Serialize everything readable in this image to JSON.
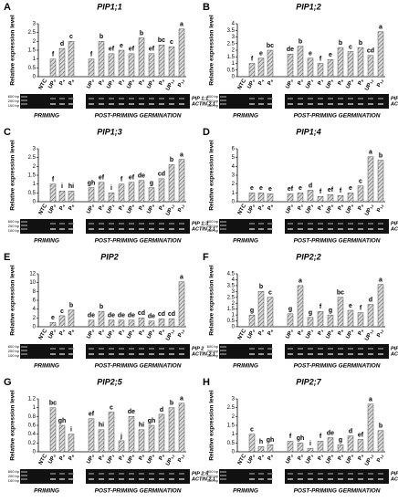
{
  "chart_data": [
    {
      "type": "bar",
      "panel": "A",
      "title": "PIP1;1",
      "ylabel": "Relative expression level",
      "categories": [
        "NTC",
        "UP₀",
        "P₄",
        "P₈",
        "UP₀",
        "P₀",
        "UP₃",
        "P₃",
        "UP₆",
        "P₆",
        "UP₉",
        "P₉",
        "UP₁₂",
        "P₁₂"
      ],
      "values": [
        0,
        1.0,
        1.6,
        2.0,
        1.0,
        2.0,
        1.3,
        1.5,
        1.3,
        2.2,
        1.3,
        1.8,
        1.7,
        2.7
      ],
      "annotations": [
        null,
        "f",
        "d",
        "c",
        "f",
        "b",
        "ef",
        "e",
        "ef",
        "b",
        "ef",
        "bc",
        "c",
        "a"
      ],
      "ylim": [
        0,
        3
      ],
      "yticks": [
        0,
        0.5,
        1,
        1.5,
        2,
        2.5,
        3
      ],
      "groups": [
        "PRIMING",
        "POST-PRIMING GERMINATION"
      ],
      "gel_labels": [
        "PIP 1;1",
        "ACTIN 2.1"
      ],
      "ladder": [
        "600 bp",
        "200 bp",
        "100 bp"
      ]
    },
    {
      "type": "bar",
      "panel": "B",
      "title": "PIP1;2",
      "ylabel": "Relative expression level",
      "categories": [
        "NTC",
        "UP₀",
        "P₄",
        "P₈",
        "UP₀",
        "P₀",
        "UP₃",
        "P₃",
        "UP₆",
        "P₆",
        "UP₉",
        "P₉",
        "UP₁₂",
        "P₁₂"
      ],
      "values": [
        0,
        1.0,
        1.4,
        2.0,
        1.7,
        2.3,
        1.4,
        1.0,
        1.3,
        2.2,
        1.9,
        2.2,
        1.6,
        3.4
      ],
      "annotations": [
        null,
        "f",
        "e",
        "bc",
        "de",
        "b",
        "e",
        "f",
        "e",
        "b",
        "c",
        "b",
        "cd",
        "a"
      ],
      "ylim": [
        0,
        4
      ],
      "yticks": [
        0,
        0.5,
        1,
        1.5,
        2,
        2.5,
        3,
        3.5,
        4
      ],
      "groups": [
        "PRIMING",
        "POST-PRIMING GERMINATION"
      ],
      "gel_labels": [
        "PIP 1;2",
        "ACTIN 2.1"
      ],
      "ladder": [
        "600 bp",
        "200 bp",
        "100 bp"
      ]
    },
    {
      "type": "bar",
      "panel": "C",
      "title": "PIP1;3",
      "ylabel": "Relative expression level",
      "categories": [
        "NTC",
        "UP₀",
        "P₄",
        "P₈",
        "UP₀",
        "P₀",
        "UP₃",
        "P₃",
        "UP₆",
        "P₆",
        "UP₉",
        "P₉",
        "UP₁₂",
        "P₁₂"
      ],
      "values": [
        0,
        1.0,
        0.6,
        0.6,
        0.8,
        1.1,
        0.5,
        1.0,
        1.1,
        1.2,
        0.8,
        1.3,
        2.1,
        2.4
      ],
      "annotations": [
        null,
        "f",
        "i",
        "hi",
        "gh",
        "ef",
        "i",
        "f",
        "ef",
        "de",
        "g",
        "cd",
        "b",
        "a"
      ],
      "ylim": [
        0,
        3
      ],
      "yticks": [
        0,
        0.5,
        1,
        1.5,
        2,
        2.5,
        3
      ],
      "groups": [
        "PRIMING",
        "POST-PRIMING GERMINATION"
      ],
      "gel_labels": [
        "PIP 1;3",
        "ACTIN 2.1"
      ],
      "ladder": [
        "600 bp",
        "200 bp",
        "100 bp"
      ]
    },
    {
      "type": "bar",
      "panel": "D",
      "title": "PIP1;4",
      "ylabel": "Relative expression level",
      "categories": [
        "NTC",
        "UP₀",
        "P₄",
        "P₈",
        "UP₀",
        "P₀",
        "UP₃",
        "P₃",
        "UP₆",
        "P₆",
        "UP₉",
        "P₉",
        "UP₁₂",
        "P₁₂"
      ],
      "values": [
        0,
        1.0,
        1.0,
        0.9,
        0.9,
        1.0,
        1.3,
        0.6,
        0.8,
        0.7,
        1.0,
        1.8,
        5.1,
        4.7
      ],
      "annotations": [
        null,
        "e",
        "e",
        "e",
        "ef",
        "e",
        "d",
        "f",
        "ef",
        "f",
        "e",
        "c",
        "a",
        "b"
      ],
      "ylim": [
        0,
        6
      ],
      "yticks": [
        0,
        1,
        2,
        3,
        4,
        5,
        6
      ],
      "groups": [
        "PRIMING",
        "POST-PRIMING GERMINATION"
      ],
      "gel_labels": [
        "PIP 1;4",
        "ACTIN 2.1"
      ],
      "ladder": [
        "600 bp",
        "200 bp",
        "100 bp"
      ]
    },
    {
      "type": "bar",
      "panel": "E",
      "title": "PIP2",
      "ylabel": "Relative expression level",
      "categories": [
        "NTC",
        "UP₀",
        "P₄",
        "P₈",
        "UP₀",
        "P₀",
        "UP₃",
        "P₃",
        "UP₆",
        "P₆",
        "UP₉",
        "P₉",
        "UP₁₂",
        "P₁₂"
      ],
      "values": [
        0,
        1.0,
        2.5,
        3.8,
        1.5,
        3.5,
        1.5,
        1.5,
        1.5,
        2.0,
        1.3,
        1.8,
        1.8,
        10.2
      ],
      "annotations": [
        null,
        "e",
        "c",
        "b",
        "de",
        "b",
        "de",
        "de",
        "de",
        "cd",
        "de",
        "cd",
        "cd",
        "a"
      ],
      "ylim": [
        0,
        12
      ],
      "yticks": [
        0,
        2,
        4,
        6,
        8,
        10,
        12
      ],
      "groups": [
        "PRIMING",
        "POST-PRIMING GERMINATION"
      ],
      "gel_labels": [
        "PIP 2",
        "ACTIN 2.1"
      ],
      "ladder": [
        "600 bp",
        "200 bp",
        "100 bp"
      ]
    },
    {
      "type": "bar",
      "panel": "F",
      "title": "PIP2;2",
      "ylabel": "Relative expression level",
      "categories": [
        "NTC",
        "UP₀",
        "P₄",
        "P₈",
        "UP₀",
        "P₀",
        "UP₃",
        "P₃",
        "UP₆",
        "P₆",
        "UP₉",
        "P₉",
        "UP₁₂",
        "P₁₂"
      ],
      "values": [
        0,
        1.0,
        3.0,
        2.5,
        1.1,
        3.5,
        0.8,
        1.3,
        1.0,
        2.5,
        1.4,
        1.2,
        1.9,
        3.6
      ],
      "annotations": [
        null,
        "g",
        "b",
        "c",
        "g",
        "a",
        "g",
        "f",
        "g",
        "bc",
        "e",
        "f",
        "d",
        "a"
      ],
      "ylim": [
        0,
        4.5
      ],
      "yticks": [
        0,
        0.5,
        1,
        1.5,
        2,
        2.5,
        3,
        3.5,
        4,
        4.5
      ],
      "groups": [
        "PRIMING",
        "POST-PRIMING GERMINATION"
      ],
      "gel_labels": [
        "PIP 2;2",
        "ACTIN 2.1"
      ],
      "ladder": [
        "600 bp",
        "200 bp",
        "100 bp"
      ]
    },
    {
      "type": "bar",
      "panel": "G",
      "title": "PIP2;5",
      "ylabel": "Relative expression level",
      "categories": [
        "NTC",
        "UP₀",
        "P₄",
        "P₈",
        "UP₀",
        "P₀",
        "UP₃",
        "P₃",
        "UP₆",
        "P₆",
        "UP₉",
        "P₉",
        "UP₁₂",
        "P₁₂"
      ],
      "values": [
        0,
        1.0,
        0.6,
        0.4,
        0.75,
        0.5,
        0.9,
        0.25,
        0.8,
        0.5,
        0.6,
        0.85,
        1.0,
        1.1
      ],
      "annotations": [
        null,
        "bc",
        "gh",
        "i",
        "ef",
        "hi",
        "c",
        "j",
        "de",
        "hi",
        "gh",
        "d",
        "b",
        "a"
      ],
      "ylim": [
        0,
        1.2
      ],
      "yticks": [
        0,
        0.2,
        0.4,
        0.6,
        0.8,
        1,
        1.2
      ],
      "groups": [
        "PRIMING",
        "POST-PRIMING GERMINATION"
      ],
      "gel_labels": [
        "PIP 2;5",
        "ACTIN 2.1"
      ],
      "ladder": [
        "600 bp",
        "200 bp",
        "100 bp"
      ]
    },
    {
      "type": "bar",
      "panel": "H",
      "title": "PIP2;7",
      "ylabel": "Relative expression level",
      "categories": [
        "NTC",
        "UP₀",
        "P₄",
        "P₈",
        "UP₀",
        "P₀",
        "UP₃",
        "P₃",
        "UP₆",
        "P₆",
        "UP₉",
        "P₉",
        "UP₁₂",
        "P₁₂"
      ],
      "values": [
        0,
        1.0,
        0.3,
        0.4,
        0.6,
        0.5,
        0.2,
        0.6,
        0.8,
        0.4,
        0.9,
        0.7,
        2.7,
        1.2
      ],
      "annotations": [
        null,
        "c",
        "h",
        "gh",
        "f",
        "gh",
        "i",
        "f",
        "de",
        "g",
        "d",
        "ef",
        "a",
        "b"
      ],
      "ylim": [
        0,
        3
      ],
      "yticks": [
        0,
        0.5,
        1,
        1.5,
        2,
        2.5,
        3
      ],
      "groups": [
        "PRIMING",
        "POST-PRIMING GERMINATION"
      ],
      "gel_labels": [
        "PIP 2;7",
        "ACTIN 2.1"
      ],
      "ladder": [
        "600 bp",
        "200 bp",
        "100 bp"
      ]
    }
  ]
}
